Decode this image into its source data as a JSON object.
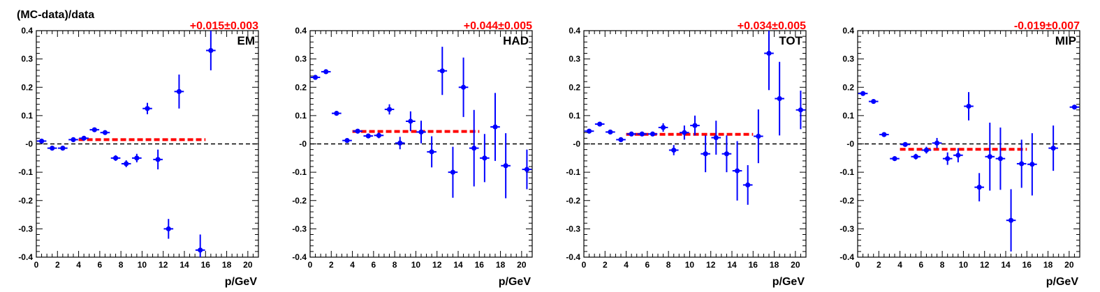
{
  "figure": {
    "ylabel": "(MC-data)/data"
  },
  "colors": {
    "points": "#0000ff",
    "fit": "#ff0000",
    "zero_line": "#000000",
    "frame": "#000000"
  },
  "chart_data": [
    {
      "type": "scatter",
      "label": "EM",
      "fit_label": "+0.015±0.003",
      "fit": {
        "value": 0.015,
        "x_range": [
          4,
          16
        ]
      },
      "xlabel": "p/GeV",
      "xlim": [
        0,
        21
      ],
      "ylim": [
        -0.4,
        0.4
      ],
      "x_ticks": [
        0,
        2,
        4,
        6,
        8,
        10,
        12,
        14,
        16,
        18,
        20
      ],
      "y_ticks": [
        -0.4,
        -0.3,
        -0.2,
        -0.1,
        0,
        0.1,
        0.2,
        0.3,
        0.4
      ],
      "y_tick_labels": [
        "-0.4",
        "-0.3",
        "-0.2",
        "-0.1",
        "-0",
        "0.1",
        "0.2",
        "0.3",
        "0.4"
      ],
      "reference_line": 0,
      "grid": false,
      "points": [
        {
          "x": 0.5,
          "y": 0.01,
          "err": 0.005
        },
        {
          "x": 1.5,
          "y": -0.015,
          "err": 0.004
        },
        {
          "x": 2.5,
          "y": -0.015,
          "err": 0.004
        },
        {
          "x": 3.5,
          "y": 0.015,
          "err": 0.004
        },
        {
          "x": 4.5,
          "y": 0.02,
          "err": 0.004
        },
        {
          "x": 5.5,
          "y": 0.05,
          "err": 0.004
        },
        {
          "x": 6.5,
          "y": 0.04,
          "err": 0.006
        },
        {
          "x": 7.5,
          "y": -0.05,
          "err": 0.01
        },
        {
          "x": 8.5,
          "y": -0.07,
          "err": 0.012
        },
        {
          "x": 9.5,
          "y": -0.05,
          "err": 0.015
        },
        {
          "x": 10.5,
          "y": 0.125,
          "err": 0.02
        },
        {
          "x": 11.5,
          "y": -0.055,
          "err": 0.035
        },
        {
          "x": 12.5,
          "y": -0.3,
          "err": 0.035
        },
        {
          "x": 13.5,
          "y": 0.185,
          "err": 0.06
        },
        {
          "x": 15.5,
          "y": -0.375,
          "err": 0.055
        },
        {
          "x": 16.5,
          "y": 0.33,
          "err": 0.07
        }
      ]
    },
    {
      "type": "scatter",
      "label": "HAD",
      "fit_label": "+0.044±0.005",
      "fit": {
        "value": 0.044,
        "x_range": [
          4,
          16
        ]
      },
      "xlabel": "p/GeV",
      "xlim": [
        0,
        21
      ],
      "ylim": [
        -0.4,
        0.4
      ],
      "x_ticks": [
        0,
        2,
        4,
        6,
        8,
        10,
        12,
        14,
        16,
        18,
        20
      ],
      "y_ticks": [
        -0.4,
        -0.3,
        -0.2,
        -0.1,
        0,
        0.1,
        0.2,
        0.3,
        0.4
      ],
      "y_tick_labels": [
        "-0.4",
        "-0.3",
        "-0.2",
        "-0.1",
        "-0",
        "0.1",
        "0.2",
        "0.3",
        "0.4"
      ],
      "reference_line": 0,
      "grid": false,
      "points": [
        {
          "x": 0.5,
          "y": 0.235,
          "err": 0.005
        },
        {
          "x": 1.5,
          "y": 0.255,
          "err": 0.005
        },
        {
          "x": 2.5,
          "y": 0.108,
          "err": 0.005
        },
        {
          "x": 3.5,
          "y": 0.012,
          "err": 0.005
        },
        {
          "x": 4.5,
          "y": 0.045,
          "err": 0.006
        },
        {
          "x": 5.5,
          "y": 0.028,
          "err": 0.008
        },
        {
          "x": 6.5,
          "y": 0.03,
          "err": 0.01
        },
        {
          "x": 7.5,
          "y": 0.122,
          "err": 0.018
        },
        {
          "x": 8.5,
          "y": 0.003,
          "err": 0.022
        },
        {
          "x": 9.5,
          "y": 0.08,
          "err": 0.035
        },
        {
          "x": 10.5,
          "y": 0.042,
          "err": 0.04
        },
        {
          "x": 11.5,
          "y": -0.028,
          "err": 0.055
        },
        {
          "x": 12.5,
          "y": 0.258,
          "err": 0.085
        },
        {
          "x": 13.5,
          "y": -0.1,
          "err": 0.09
        },
        {
          "x": 14.5,
          "y": 0.2,
          "err": 0.105
        },
        {
          "x": 15.5,
          "y": -0.015,
          "err": 0.135
        },
        {
          "x": 16.5,
          "y": -0.05,
          "err": 0.085
        },
        {
          "x": 17.5,
          "y": 0.06,
          "err": 0.12
        },
        {
          "x": 18.5,
          "y": -0.077,
          "err": 0.115
        },
        {
          "x": 20.5,
          "y": -0.09,
          "err": 0.07
        }
      ]
    },
    {
      "type": "scatter",
      "label": "TOT",
      "fit_label": "+0.034±0.005",
      "fit": {
        "value": 0.034,
        "x_range": [
          4,
          16
        ]
      },
      "xlabel": "p/GeV",
      "xlim": [
        0,
        21
      ],
      "ylim": [
        -0.4,
        0.4
      ],
      "x_ticks": [
        0,
        2,
        4,
        6,
        8,
        10,
        12,
        14,
        16,
        18,
        20
      ],
      "y_ticks": [
        -0.4,
        -0.3,
        -0.2,
        -0.1,
        0,
        0.1,
        0.2,
        0.3,
        0.4
      ],
      "y_tick_labels": [
        "-0.4",
        "-0.3",
        "-0.2",
        "-0.1",
        "-0",
        "0.1",
        "0.2",
        "0.3",
        "0.4"
      ],
      "reference_line": 0,
      "grid": false,
      "points": [
        {
          "x": 0.5,
          "y": 0.045,
          "err": 0.005
        },
        {
          "x": 1.5,
          "y": 0.07,
          "err": 0.005
        },
        {
          "x": 2.5,
          "y": 0.042,
          "err": 0.005
        },
        {
          "x": 3.5,
          "y": 0.015,
          "err": 0.005
        },
        {
          "x": 4.5,
          "y": 0.035,
          "err": 0.006
        },
        {
          "x": 5.5,
          "y": 0.035,
          "err": 0.006
        },
        {
          "x": 6.5,
          "y": 0.035,
          "err": 0.008
        },
        {
          "x": 7.5,
          "y": 0.058,
          "err": 0.015
        },
        {
          "x": 8.5,
          "y": -0.022,
          "err": 0.018
        },
        {
          "x": 9.5,
          "y": 0.04,
          "err": 0.025
        },
        {
          "x": 10.5,
          "y": 0.065,
          "err": 0.035
        },
        {
          "x": 11.5,
          "y": -0.035,
          "err": 0.065
        },
        {
          "x": 12.5,
          "y": 0.022,
          "err": 0.06
        },
        {
          "x": 13.5,
          "y": -0.035,
          "err": 0.065
        },
        {
          "x": 14.5,
          "y": -0.095,
          "err": 0.105
        },
        {
          "x": 15.5,
          "y": -0.145,
          "err": 0.07
        },
        {
          "x": 16.5,
          "y": 0.027,
          "err": 0.095
        },
        {
          "x": 17.5,
          "y": 0.32,
          "err": 0.13
        },
        {
          "x": 18.5,
          "y": 0.16,
          "err": 0.13
        },
        {
          "x": 20.5,
          "y": 0.12,
          "err": 0.068
        }
      ]
    },
    {
      "type": "scatter",
      "label": "MIP",
      "fit_label": "-0.019±0.007",
      "fit": {
        "value": -0.019,
        "x_range": [
          4,
          16
        ]
      },
      "xlabel": "p/GeV",
      "xlim": [
        0,
        21
      ],
      "ylim": [
        -0.4,
        0.4
      ],
      "x_ticks": [
        0,
        2,
        4,
        6,
        8,
        10,
        12,
        14,
        16,
        18,
        20
      ],
      "y_ticks": [
        -0.4,
        -0.3,
        -0.2,
        -0.1,
        0,
        0.1,
        0.2,
        0.3,
        0.4
      ],
      "y_tick_labels": [
        "-0.4",
        "-0.3",
        "-0.2",
        "-0.1",
        "-0",
        "0.1",
        "0.2",
        "0.3",
        "0.4"
      ],
      "reference_line": 0,
      "grid": false,
      "points": [
        {
          "x": 0.5,
          "y": 0.178,
          "err": 0.005
        },
        {
          "x": 1.5,
          "y": 0.15,
          "err": 0.005
        },
        {
          "x": 2.5,
          "y": 0.033,
          "err": 0.005
        },
        {
          "x": 3.5,
          "y": -0.052,
          "err": 0.005
        },
        {
          "x": 4.5,
          "y": -0.002,
          "err": 0.006
        },
        {
          "x": 5.5,
          "y": -0.045,
          "err": 0.01
        },
        {
          "x": 6.5,
          "y": -0.022,
          "err": 0.012
        },
        {
          "x": 7.5,
          "y": 0.003,
          "err": 0.018
        },
        {
          "x": 8.5,
          "y": -0.052,
          "err": 0.022
        },
        {
          "x": 9.5,
          "y": -0.04,
          "err": 0.025
        },
        {
          "x": 10.5,
          "y": 0.133,
          "err": 0.05
        },
        {
          "x": 11.5,
          "y": -0.153,
          "err": 0.05
        },
        {
          "x": 12.5,
          "y": -0.045,
          "err": 0.12
        },
        {
          "x": 13.5,
          "y": -0.052,
          "err": 0.11
        },
        {
          "x": 14.5,
          "y": -0.27,
          "err": 0.11
        },
        {
          "x": 15.5,
          "y": -0.07,
          "err": 0.085
        },
        {
          "x": 16.5,
          "y": -0.072,
          "err": 0.11
        },
        {
          "x": 18.5,
          "y": -0.015,
          "err": 0.08
        },
        {
          "x": 20.5,
          "y": 0.13,
          "err": 0.008
        }
      ]
    }
  ]
}
